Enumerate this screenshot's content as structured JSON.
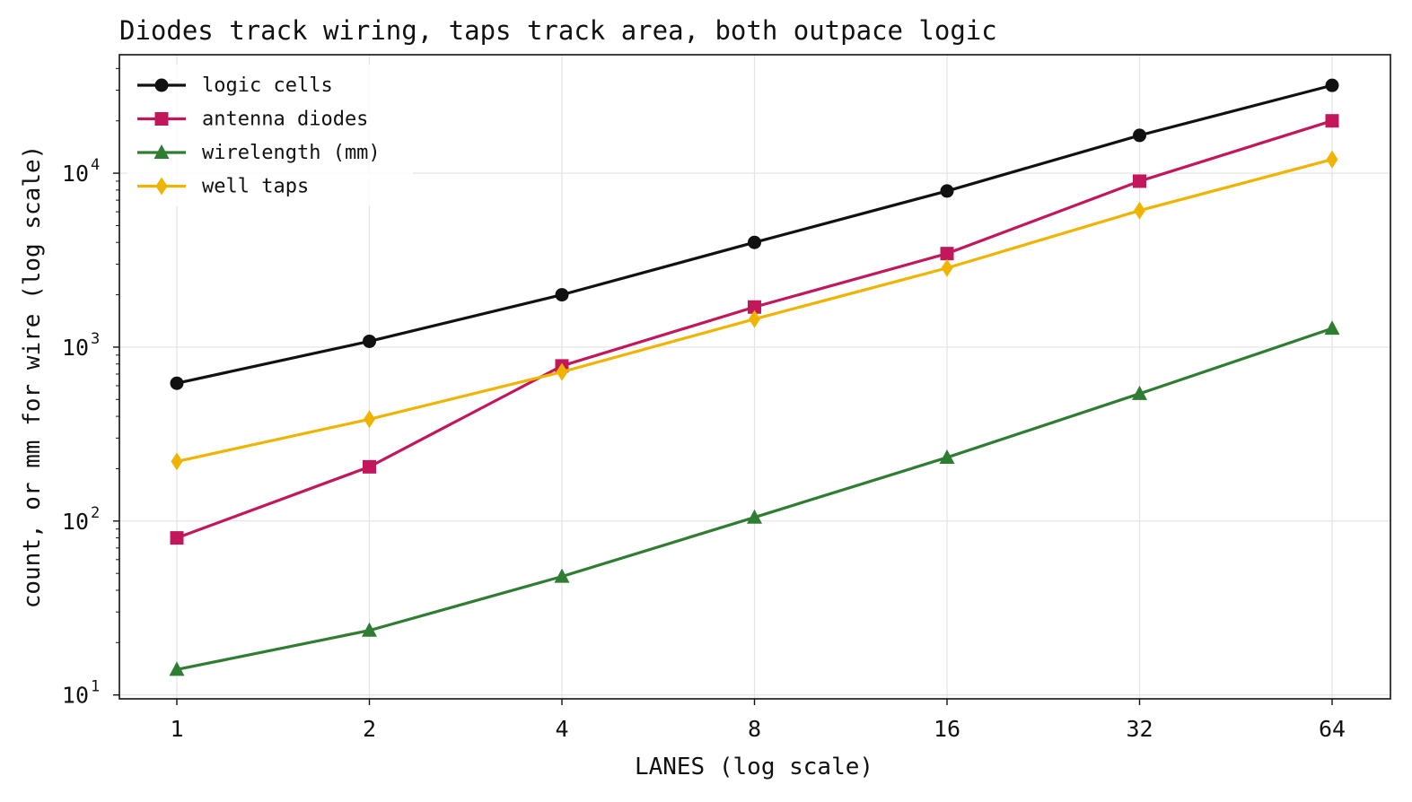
{
  "chart_data": {
    "type": "line",
    "title": "Diodes track wiring, taps track area, both outpace logic",
    "xlabel": "LANES (log scale)",
    "ylabel": "count, or mm for wire (log scale)",
    "x_scale": "log2",
    "y_scale": "log10",
    "x": [
      1,
      2,
      4,
      8,
      16,
      32,
      64
    ],
    "x_tick_labels": [
      "1",
      "2",
      "4",
      "8",
      "16",
      "32",
      "64"
    ],
    "y_ticks": [
      {
        "value": 10,
        "base": "10",
        "exp": "1"
      },
      {
        "value": 100,
        "base": "10",
        "exp": "2"
      },
      {
        "value": 1000,
        "base": "10",
        "exp": "3"
      },
      {
        "value": 10000,
        "base": "10",
        "exp": "4"
      }
    ],
    "ylim": [
      9.5,
      48000
    ],
    "grid": true,
    "legend_position": "top-left",
    "series": [
      {
        "name": "logic cells",
        "color": "#111111",
        "marker": "circle",
        "values": [
          620,
          1080,
          2000,
          4000,
          7900,
          16500,
          32000
        ]
      },
      {
        "name": "antenna diodes",
        "color": "#c2185b",
        "marker": "square",
        "values": [
          80,
          205,
          780,
          1700,
          3450,
          9000,
          20000
        ]
      },
      {
        "name": "wirelength (mm)",
        "color": "#2e7d32",
        "marker": "triangle",
        "values": [
          14,
          23.5,
          48,
          105,
          232,
          540,
          1280
        ]
      },
      {
        "name": "well taps",
        "color": "#f0b400",
        "marker": "diamond",
        "values": [
          220,
          385,
          720,
          1450,
          2850,
          6100,
          12000
        ]
      }
    ]
  }
}
